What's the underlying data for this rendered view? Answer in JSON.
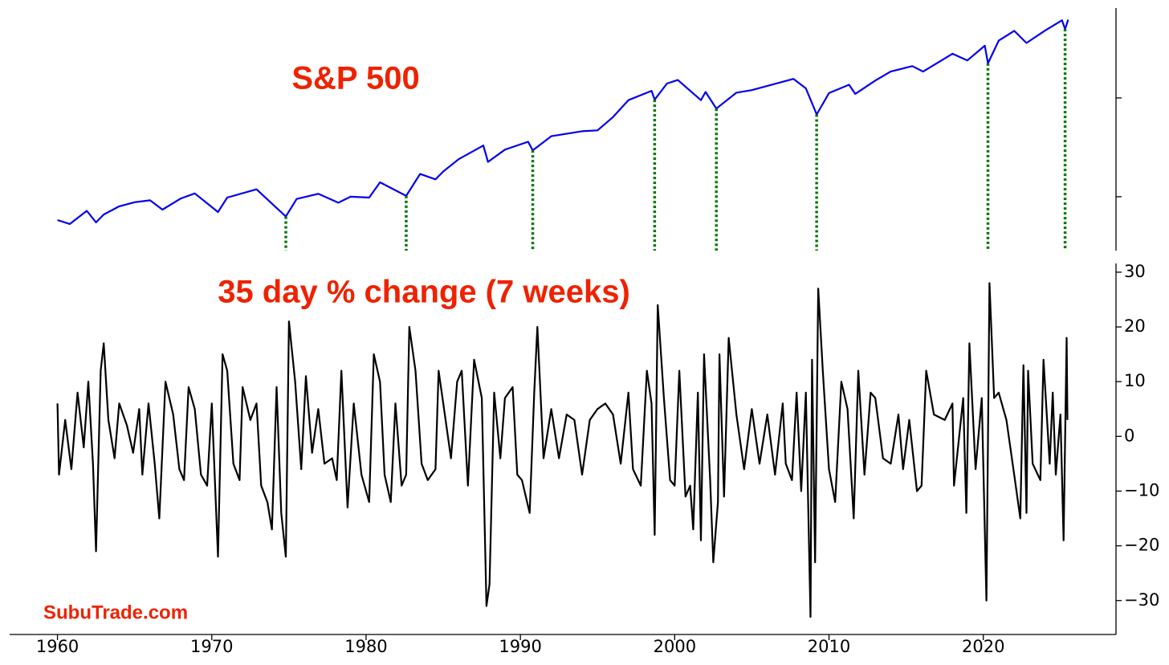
{
  "chart_data": [
    {
      "type": "line",
      "annotation": "S&P 500",
      "log_scale": true,
      "color": "#0000ee",
      "marker_color": "#007700",
      "xlim": [
        1956.9,
        2028.6
      ],
      "ylim": [
        28.5,
        8130
      ],
      "yticks": [
        100,
        1000
      ],
      "x": [
        1960,
        1960.8,
        1961.9,
        1962.5,
        1963,
        1964,
        1965,
        1966,
        1966.8,
        1968,
        1968.9,
        1970.4,
        1971,
        1972.9,
        1974.8,
        1975.5,
        1976.9,
        1978.2,
        1979,
        1980.2,
        1980.9,
        1982.6,
        1983.5,
        1984.5,
        1985,
        1986,
        1987.6,
        1987.9,
        1989,
        1990.5,
        1990.8,
        1992,
        1994,
        1995,
        1996,
        1997,
        1998.5,
        1998.7,
        1999.5,
        2000.2,
        2001.7,
        2002,
        2002.7,
        2004,
        2005,
        2007.7,
        2008.5,
        2009.2,
        2010,
        2011.3,
        2011.7,
        2013,
        2014,
        2015.4,
        2016.1,
        2018,
        2018.97,
        2020.1,
        2020.3,
        2021,
        2022,
        2022.8,
        2024,
        2025.1,
        2025.3,
        2025.5
      ],
      "values": [
        58,
        53,
        72,
        55,
        66,
        80,
        88,
        92,
        74,
        96,
        108,
        70,
        98,
        119,
        63,
        95,
        107,
        87,
        100,
        98,
        140,
        102,
        170,
        150,
        180,
        240,
        330,
        225,
        300,
        360,
        295,
        410,
        460,
        470,
        640,
        950,
        1180,
        960,
        1400,
        1520,
        950,
        1150,
        780,
        1130,
        1200,
        1560,
        1250,
        680,
        1120,
        1360,
        1100,
        1500,
        1850,
        2100,
        1850,
        2800,
        2400,
        3380,
        2240,
        3800,
        4780,
        3600,
        4800,
        6100,
        4980,
        6200
      ],
      "markers_x": [
        1974.8,
        1982.6,
        1990.8,
        1998.7,
        2002.7,
        2009.2,
        2020.3,
        2025.3
      ]
    },
    {
      "type": "line",
      "annotation": "35 day % change (7 weeks)",
      "watermark": "SubuTrade.com",
      "color": "#000000",
      "xlim": [
        1956.9,
        2028.6
      ],
      "ylim": [
        -36.2,
        31.6
      ],
      "xticks": [
        1960,
        1970,
        1980,
        1990,
        2000,
        2010,
        2020
      ],
      "yticks": [
        {
          "value": -30,
          "label": "−30"
        },
        {
          "value": -20,
          "label": "−20"
        },
        {
          "value": -10,
          "label": "−10"
        },
        0,
        10,
        20,
        30
      ],
      "x": [
        1960.0,
        1960.1,
        1960.5,
        1960.9,
        1961.3,
        1961.7,
        1962.0,
        1962.3,
        1962.5,
        1962.8,
        1963.0,
        1963.3,
        1963.7,
        1964.0,
        1964.5,
        1964.9,
        1965.3,
        1965.5,
        1965.9,
        1966.3,
        1966.6,
        1967.0,
        1967.5,
        1967.9,
        1968.2,
        1968.5,
        1968.9,
        1969.3,
        1969.7,
        1970.0,
        1970.4,
        1970.7,
        1971.0,
        1971.4,
        1971.8,
        1972.0,
        1972.5,
        1972.9,
        1973.2,
        1973.6,
        1973.9,
        1974.2,
        1974.5,
        1974.8,
        1975.0,
        1975.4,
        1975.8,
        1976.1,
        1976.5,
        1976.9,
        1977.3,
        1977.8,
        1978.1,
        1978.4,
        1978.8,
        1979.2,
        1979.7,
        1980.2,
        1980.5,
        1980.9,
        1981.2,
        1981.6,
        1981.9,
        1982.3,
        1982.6,
        1982.8,
        1983.2,
        1983.6,
        1984.0,
        1984.5,
        1984.7,
        1985.0,
        1985.5,
        1985.9,
        1986.2,
        1986.6,
        1987.0,
        1987.5,
        1987.8,
        1988.0,
        1988.3,
        1988.7,
        1989.0,
        1989.5,
        1989.8,
        1990.1,
        1990.6,
        1990.9,
        1991.1,
        1991.5,
        1992.0,
        1992.5,
        1993.0,
        1993.5,
        1994.0,
        1994.5,
        1995.0,
        1995.5,
        1996.0,
        1996.5,
        1997.0,
        1997.3,
        1997.8,
        1998.2,
        1998.5,
        1998.7,
        1998.9,
        1999.3,
        1999.7,
        2000.0,
        2000.3,
        2000.7,
        2001.0,
        2001.2,
        2001.5,
        2001.7,
        2001.9,
        2002.3,
        2002.5,
        2002.8,
        2002.9,
        2003.2,
        2003.5,
        2004.0,
        2004.5,
        2005.0,
        2005.5,
        2006.0,
        2006.5,
        2007.0,
        2007.2,
        2007.6,
        2007.9,
        2008.2,
        2008.5,
        2008.8,
        2008.9,
        2009.1,
        2009.3,
        2009.6,
        2010.0,
        2010.4,
        2010.8,
        2011.2,
        2011.6,
        2011.9,
        2012.3,
        2012.7,
        2013.0,
        2013.5,
        2014.0,
        2014.5,
        2014.8,
        2015.2,
        2015.7,
        2016.0,
        2016.3,
        2016.8,
        2017.5,
        2018.0,
        2018.1,
        2018.7,
        2018.9,
        2019.1,
        2019.5,
        2019.9,
        2020.2,
        2020.4,
        2020.7,
        2021.0,
        2021.5,
        2022.0,
        2022.4,
        2022.6,
        2022.8,
        2022.9,
        2023.2,
        2023.7,
        2023.9,
        2024.3,
        2024.5,
        2024.7,
        2025.0,
        2025.2,
        2025.4,
        2025.45
      ],
      "values": [
        6,
        -7,
        3,
        -6,
        8,
        -2,
        10,
        -5,
        -21,
        12,
        17,
        3,
        -4,
        6,
        2,
        -3,
        5,
        -7,
        6,
        -5,
        -15,
        10,
        4,
        -6,
        -8,
        9,
        5,
        -7,
        -9,
        6,
        -22,
        15,
        12,
        -5,
        -8,
        9,
        3,
        6,
        -9,
        -12,
        -17,
        9,
        -14,
        -22,
        21,
        10,
        -6,
        11,
        -3,
        5,
        -5,
        -4,
        -8,
        12,
        -13,
        6,
        -7,
        -12,
        15,
        10,
        -7,
        -12,
        6,
        -9,
        -7,
        20,
        12,
        -5,
        -8,
        -6,
        12,
        6,
        -4,
        10,
        12,
        -9,
        14,
        7,
        -31,
        -27,
        8,
        -4,
        7,
        9,
        -7,
        -8,
        -14,
        8,
        20,
        -4,
        5,
        -4,
        4,
        3,
        -7,
        3,
        5,
        6,
        4,
        -5,
        8,
        -6,
        -9,
        12,
        6,
        -18,
        24,
        7,
        -8,
        -9,
        12,
        -11,
        -9,
        -17,
        8,
        -19,
        15,
        -8,
        -23,
        -12,
        15,
        -11,
        18,
        4,
        -6,
        5,
        -5,
        4,
        -7,
        6,
        -5,
        -8,
        8,
        -10,
        8,
        -33,
        14,
        -23,
        27,
        12,
        -6,
        -12,
        10,
        5,
        -15,
        12,
        -7,
        8,
        7,
        -4,
        -5,
        4,
        -6,
        3,
        -10,
        -9,
        12,
        4,
        3,
        6,
        -9,
        7,
        -14,
        17,
        -6,
        7,
        -30,
        28,
        7,
        8,
        3,
        -7,
        -15,
        13,
        -14,
        12,
        -5,
        -8,
        14,
        -5,
        8,
        -7,
        4,
        -19,
        18,
        3
      ]
    }
  ]
}
